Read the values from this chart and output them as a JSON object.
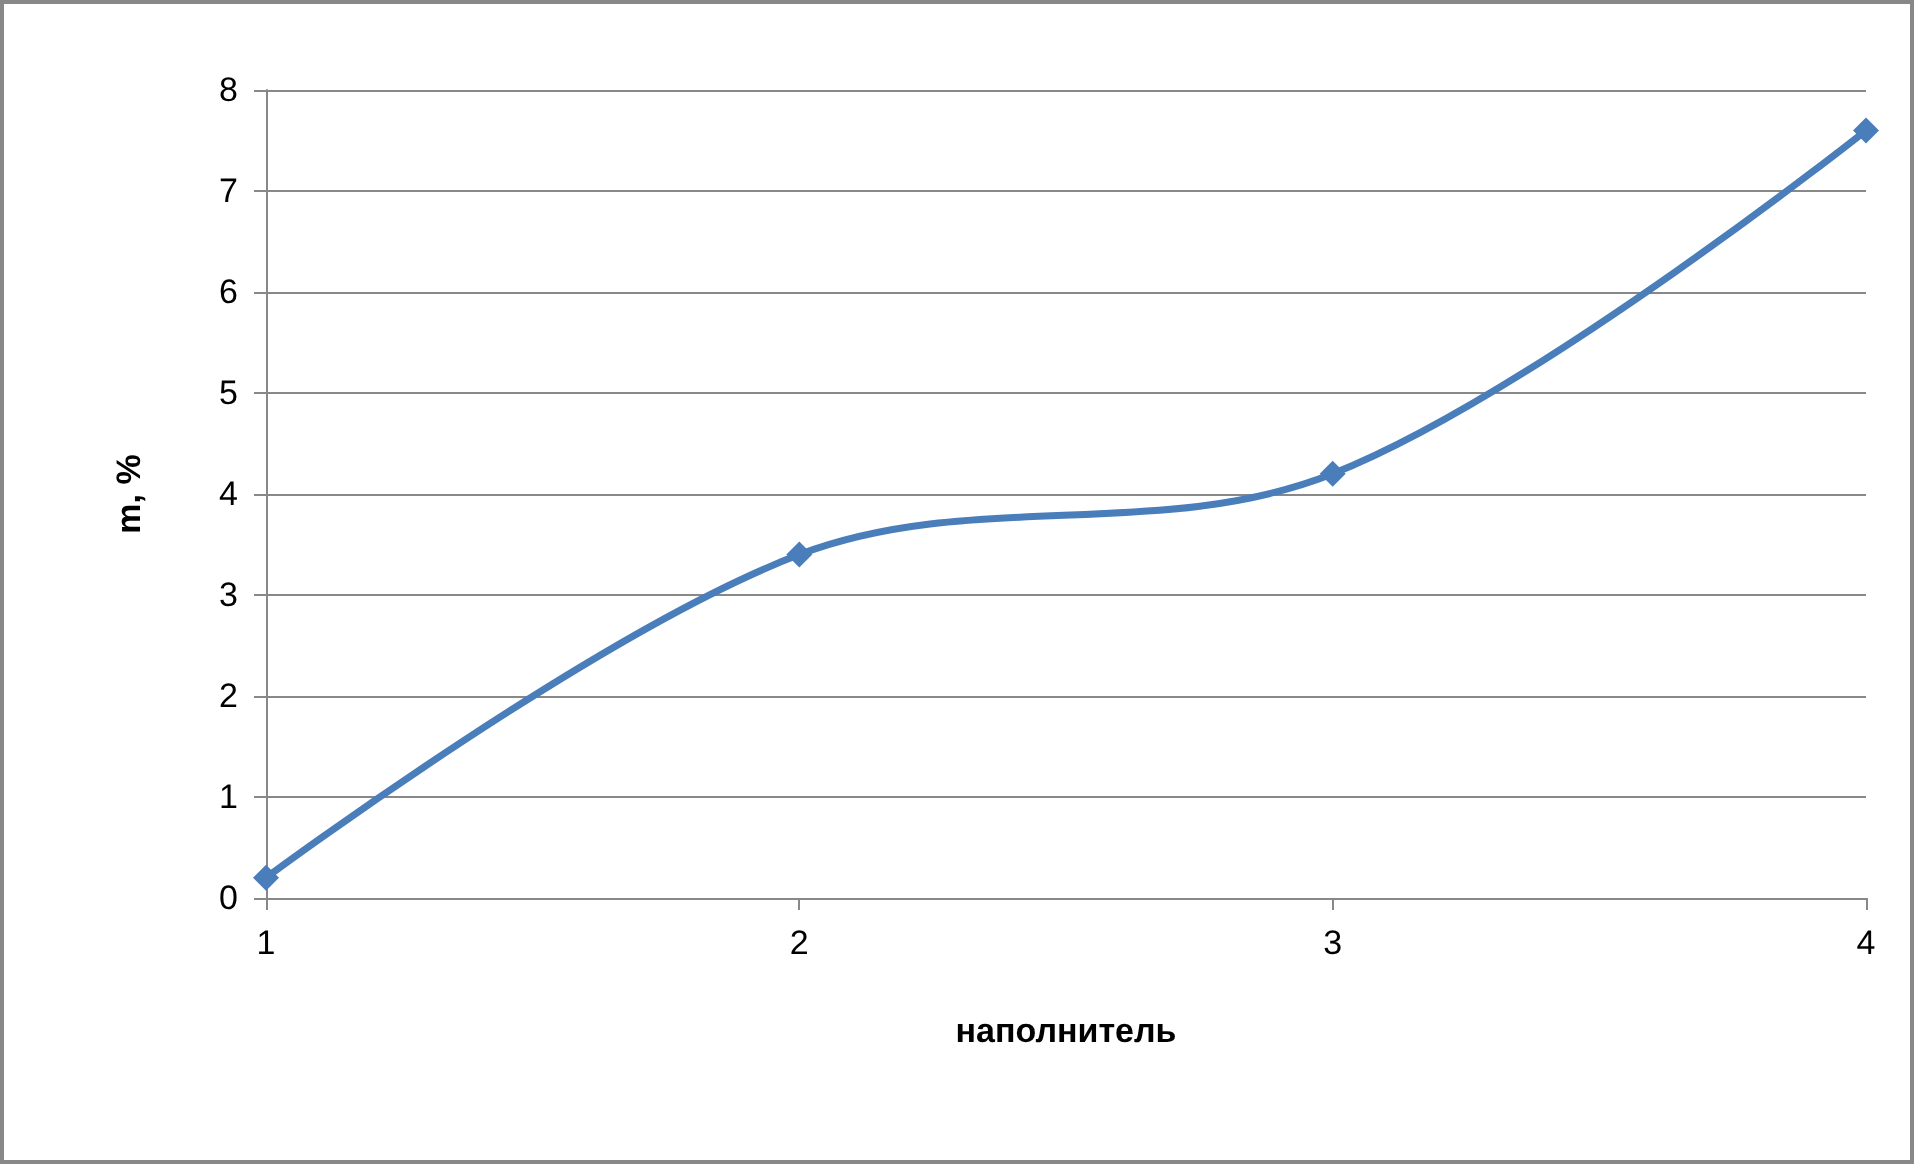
{
  "chart_data": {
    "type": "line",
    "xlabel": "наполнитель",
    "ylabel": "m, %",
    "categories": [
      "1",
      "2",
      "3",
      "4"
    ],
    "series": [
      {
        "color": "#4a7ebb",
        "values": [
          0.2,
          3.4,
          4.2,
          7.6
        ]
      }
    ],
    "ylim": [
      0,
      8
    ],
    "yticks": [
      0,
      1,
      2,
      3,
      4,
      5,
      6,
      7,
      8
    ],
    "grid": "y",
    "marker": "diamond",
    "line_style": "solid"
  }
}
